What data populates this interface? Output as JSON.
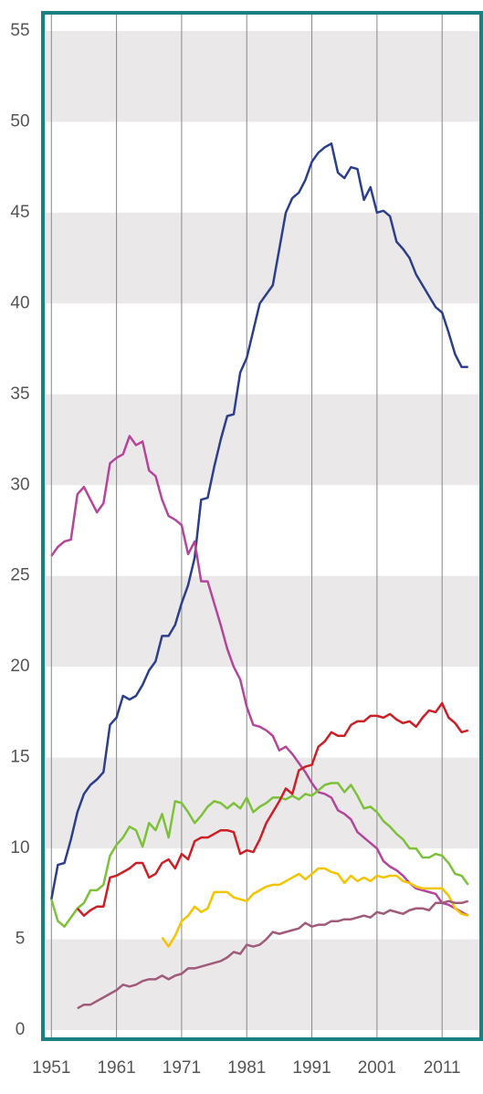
{
  "chart_data": {
    "type": "line",
    "x": [
      1951,
      1952,
      1953,
      1954,
      1955,
      1956,
      1957,
      1958,
      1959,
      1960,
      1961,
      1962,
      1963,
      1964,
      1965,
      1966,
      1967,
      1968,
      1969,
      1970,
      1971,
      1972,
      1973,
      1974,
      1975,
      1976,
      1977,
      1978,
      1979,
      1980,
      1981,
      1982,
      1983,
      1984,
      1985,
      1986,
      1987,
      1988,
      1989,
      1990,
      1991,
      1992,
      1993,
      1994,
      1995,
      1996,
      1997,
      1998,
      1999,
      2000,
      2001,
      2002,
      2003,
      2004,
      2005,
      2006,
      2007,
      2008,
      2009,
      2010,
      2011,
      2012,
      2013,
      2014,
      2015
    ],
    "series": [
      {
        "color": "#2b3f8c",
        "values": [
          7.2,
          9.1,
          9.2,
          10.5,
          12,
          13,
          13.5,
          13.8,
          14.2,
          16.8,
          17.2,
          18.4,
          18.2,
          18.4,
          19,
          19.8,
          20.3,
          21.7,
          21.7,
          22.3,
          23.5,
          24.5,
          26,
          29.2,
          29.3,
          31,
          32.5,
          33.8,
          33.9,
          36.2,
          37,
          38.5,
          40,
          40.5,
          41,
          43,
          45,
          45.8,
          46.1,
          46.8,
          47.8,
          48.3,
          48.6,
          48.8,
          47.2,
          46.9,
          47.5,
          47.4,
          45.7,
          46.4,
          45,
          45.1,
          44.8,
          43.4,
          43,
          42.5,
          41.6,
          41,
          40.4,
          39.8,
          39.5,
          38.4,
          37.2,
          36.5,
          36.5
        ]
      },
      {
        "color": "#b5459b",
        "values": [
          26.1,
          26.6,
          26.9,
          27,
          29.5,
          29.9,
          29.2,
          28.5,
          29,
          31.2,
          31.5,
          31.7,
          32.7,
          32.2,
          32.4,
          30.8,
          30.5,
          29.2,
          28.3,
          28.1,
          27.8,
          26.2,
          26.9,
          24.7,
          24.7,
          23.5,
          22.3,
          21,
          20,
          19.3,
          17.8,
          16.8,
          16.7,
          16.5,
          16.2,
          15.4,
          15.6,
          15.2,
          14.7,
          14.2,
          13.6,
          13.1,
          13,
          12.8,
          12.1,
          11.9,
          11.6,
          10.9,
          10.6,
          10.3,
          10,
          9.3,
          9,
          8.8,
          8.5,
          8.1,
          7.8,
          7.7,
          7.6,
          7.5,
          7,
          6.9,
          6.7,
          6.5,
          6.3
        ]
      },
      {
        "color": "#7dc13a",
        "values": [
          7.2,
          6,
          5.7,
          6.2,
          6.7,
          7,
          7.7,
          7.7,
          8,
          9.6,
          10.2,
          10.6,
          11.2,
          11,
          10.1,
          11.4,
          11,
          11.9,
          10.6,
          12.6,
          12.5,
          12,
          11.4,
          11.8,
          12.3,
          12.6,
          12.5,
          12.2,
          12.5,
          12.2,
          12.8,
          12,
          12.3,
          12.5,
          12.8,
          12.8,
          12.7,
          12.9,
          12.7,
          13,
          12.9,
          13.2,
          13.5,
          13.6,
          13.6,
          13.1,
          13.5,
          12.9,
          12.2,
          12.3,
          12,
          11.5,
          11.2,
          10.8,
          10.5,
          10,
          10,
          9.5,
          9.5,
          9.7,
          9.6,
          9.2,
          8.6,
          8.5,
          8
        ]
      },
      {
        "color": "#cc1f26",
        "values": [
          null,
          null,
          null,
          null,
          6.7,
          6.3,
          6.6,
          6.8,
          6.8,
          8.4,
          8.5,
          8.7,
          8.9,
          9.2,
          9.2,
          8.4,
          8.6,
          9.2,
          9.4,
          8.9,
          9.7,
          9.4,
          10.4,
          10.6,
          10.6,
          10.8,
          11,
          11,
          10.9,
          9.7,
          9.9,
          9.8,
          10.5,
          11.4,
          12,
          12.6,
          13.3,
          13,
          14.3,
          14.5,
          14.6,
          15.6,
          15.9,
          16.4,
          16.2,
          16.2,
          16.8,
          17,
          17,
          17.3,
          17.3,
          17.2,
          17.4,
          17.1,
          16.9,
          17,
          16.7,
          17.2,
          17.6,
          17.5,
          18,
          17.2,
          16.9,
          16.4,
          16.5
        ]
      },
      {
        "color": "#f5c400",
        "values": [
          null,
          null,
          null,
          null,
          null,
          null,
          null,
          null,
          null,
          null,
          null,
          null,
          null,
          null,
          null,
          null,
          null,
          5.1,
          4.6,
          5.2,
          6,
          6.3,
          6.8,
          6.5,
          6.7,
          7.6,
          7.6,
          7.6,
          7.3,
          7.2,
          7.1,
          7.5,
          7.7,
          7.9,
          8,
          8,
          8.2,
          8.4,
          8.6,
          8.3,
          8.6,
          8.9,
          8.9,
          8.7,
          8.6,
          8.1,
          8.5,
          8.2,
          8.4,
          8.2,
          8.5,
          8.4,
          8.5,
          8.5,
          8.2,
          8.1,
          7.9,
          7.8,
          7.8,
          7.8,
          7.8,
          7.4,
          6.7,
          6.4,
          6.3
        ]
      },
      {
        "color": "#a05a7a",
        "values": [
          null,
          null,
          null,
          null,
          1.2,
          1.4,
          1.4,
          1.6,
          1.8,
          2,
          2.2,
          2.5,
          2.4,
          2.5,
          2.7,
          2.8,
          2.8,
          3,
          2.8,
          3,
          3.1,
          3.4,
          3.4,
          3.5,
          3.6,
          3.7,
          3.8,
          4,
          4.3,
          4.2,
          4.7,
          4.6,
          4.7,
          5,
          5.4,
          5.3,
          5.4,
          5.5,
          5.6,
          5.9,
          5.7,
          5.8,
          5.8,
          6,
          6,
          6.1,
          6.1,
          6.2,
          6.3,
          6.2,
          6.5,
          6.4,
          6.6,
          6.5,
          6.4,
          6.6,
          6.7,
          6.7,
          6.6,
          7,
          7,
          7.1,
          7,
          7,
          7.1
        ]
      }
    ],
    "xlim": [
      1949.7,
      2017
    ],
    "xticks": [
      1951,
      1961,
      1971,
      1981,
      1991,
      2001,
      2011
    ],
    "ylim": [
      -0.5,
      56
    ],
    "yticks": [
      0,
      5,
      10,
      15,
      20,
      25,
      30,
      35,
      40,
      45,
      50,
      55
    ],
    "grid": true,
    "frame_color": "#1a8080",
    "band_color": "#ebe8ea"
  }
}
